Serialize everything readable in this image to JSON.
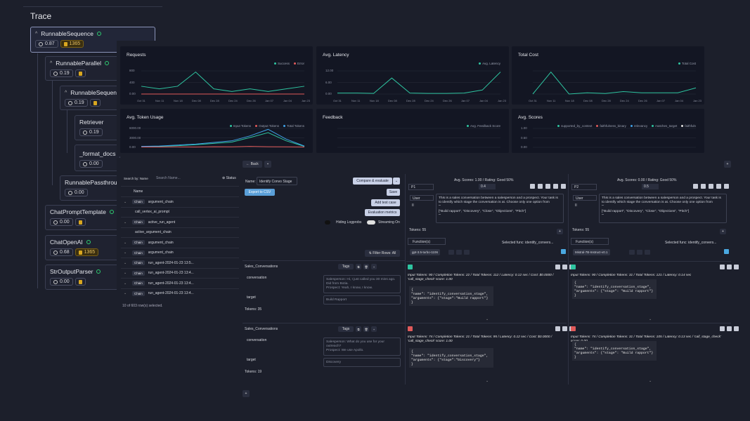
{
  "trace": {
    "title": "Trace",
    "nodes": [
      {
        "name": "RunnableSequence",
        "latency": "0.87",
        "tokens": "1365"
      },
      {
        "name": "RunnableParallel",
        "latency": "0.19"
      },
      {
        "name": "RunnableSequence",
        "latency": "0.19"
      },
      {
        "name": "Retriever",
        "latency": "0.19"
      },
      {
        "name": "_format_docs",
        "latency": "0.00"
      },
      {
        "name": "RunnablePassthrough",
        "latency": "0.00"
      },
      {
        "name": "ChatPromptTemplate",
        "latency": "0.00"
      },
      {
        "name": "ChatOpenAI",
        "latency": "0.68",
        "tokens": "1365"
      },
      {
        "name": "StrOutputParser",
        "latency": "0.00"
      }
    ]
  },
  "dashboard": {
    "cards": [
      {
        "title": "Requests",
        "legend": [
          "Success",
          "Error"
        ],
        "legend_colors": [
          "#2ec4a0",
          "#e05a5a"
        ],
        "yticks": [
          "800",
          "400",
          "0.00"
        ]
      },
      {
        "title": "Avg. Latency",
        "legend": [
          "Avg. Latency"
        ],
        "legend_colors": [
          "#2ec4a0"
        ],
        "yticks": [
          "12.00",
          "6.00",
          "0.00"
        ]
      },
      {
        "title": "Total Cost",
        "legend": [
          "Total Cost"
        ],
        "legend_colors": [
          "#2ec4a0"
        ],
        "yticks": [
          "",
          "",
          ""
        ]
      },
      {
        "title": "Avg. Token Usage",
        "legend": [
          "Input Tokens",
          "Output Tokens",
          "Total Tokens"
        ],
        "legend_colors": [
          "#2ec4a0",
          "#e05a5a",
          "#3fa0e6"
        ],
        "yticks": [
          "6000.00",
          "3000.00",
          "0.00"
        ]
      },
      {
        "title": "Feedback",
        "legend": [
          "Avg. Feedback Score"
        ],
        "legend_colors": [
          "#2ec4a0"
        ],
        "yticks": [
          "",
          "",
          ""
        ]
      },
      {
        "title": "Avg. Scores",
        "legend": [
          "supported_by_context",
          "faithfulness_binary",
          "relevancy",
          "matches_target",
          "faithfuln"
        ],
        "legend_colors": [
          "#2ec4a0",
          "#e05a5a",
          "#3fa0e6",
          "#2ec4a0",
          "#e0e0e0"
        ],
        "yticks": [
          "1.00",
          "0.50",
          "0.00"
        ]
      }
    ],
    "xticks": [
      "Oct 31",
      "Nov 11",
      "Nov 18",
      "Dec 08",
      "Dec 28",
      "Dec 24",
      "Dec 26",
      "Jan 07",
      "Jan 04",
      "Jan 23"
    ]
  },
  "chart_data": [
    {
      "type": "line",
      "title": "Requests",
      "series": [
        {
          "name": "Success",
          "values": [
            60,
            40,
            60,
            170,
            40,
            20,
            40,
            20,
            40,
            60
          ]
        },
        {
          "name": "Error",
          "values": [
            0,
            0,
            0,
            0,
            0,
            0,
            0,
            0,
            0,
            0
          ]
        }
      ]
    },
    {
      "type": "line",
      "title": "Avg. Latency",
      "series": [
        {
          "name": "Avg. Latency",
          "values": [
            0.5,
            0.5,
            0.3,
            8,
            0.5,
            0.3,
            0.3,
            0.5,
            2,
            11
          ]
        }
      ]
    },
    {
      "type": "line",
      "title": "Total Cost",
      "series": [
        {
          "name": "Total Cost",
          "values": [
            0,
            0.9,
            0,
            0.05,
            0.02,
            0.1,
            0.05,
            0.05,
            0.05,
            0.25
          ]
        }
      ]
    },
    {
      "type": "line",
      "title": "Avg. Token Usage",
      "series": [
        {
          "name": "Input Tokens",
          "values": [
            200,
            300,
            500,
            800,
            1200,
            1600,
            3000,
            4500,
            2000,
            300
          ]
        },
        {
          "name": "Output Tokens",
          "values": [
            100,
            100,
            150,
            100,
            200,
            150,
            300,
            200,
            150,
            100
          ]
        },
        {
          "name": "Total Tokens",
          "values": [
            300,
            400,
            700,
            1000,
            1500,
            2000,
            3500,
            5500,
            2500,
            400
          ]
        }
      ]
    }
  ],
  "toolbar": {
    "back_label": "Back"
  },
  "left_table": {
    "search_by": "Search by: Name",
    "search_placeholder": "Search Name...",
    "status": "Status",
    "col_name": "Name",
    "rows": [
      {
        "chain": "Chain",
        "name": "argument_chain"
      },
      {
        "chain": "",
        "name": "call_vertex_ai_prompt"
      },
      {
        "chain": "Chain",
        "name": "active_run_agent"
      },
      {
        "chain": "",
        "name": "active_argument_chain"
      },
      {
        "chain": "Chain",
        "name": "argument_chain"
      },
      {
        "chain": "Chain",
        "name": "argument_chain"
      },
      {
        "chain": "Chain",
        "name": "run_agent-2024-01-23 13:5..."
      },
      {
        "chain": "Chain",
        "name": "run_agent-2024-01-23 13:4..."
      },
      {
        "chain": "Chain",
        "name": "run_agent-2024-01-23 13:4..."
      },
      {
        "chain": "Chain",
        "name": "run_agent-2024-01-23 13:4..."
      }
    ],
    "footer": "10 of 603 row(s) selected."
  },
  "eval": {
    "name_label": "Name:",
    "name_value": "Identify Convo Stage",
    "export": "Export to CSV",
    "compare": "Compare & evaluate",
    "save": "Save",
    "add_test": "Add test case",
    "eval_metrics": "Evaluation metrics",
    "hiding_logprobs": "Hiding Logprobs",
    "streaming": "Streaming On",
    "filter": "Filter Rows: All",
    "dataset_label": "Sales_Conversations",
    "tags": "Tags",
    "conversation": "conversation",
    "target": "target",
    "rows": [
      {
        "conversation": "Salesperson: Hi, I just called you 30 mins ago. Did from Botia.\nProspect: Yeah, I know, I know.",
        "target": "Build Rapport",
        "tokens": "Tokens: 35"
      },
      {
        "conversation": "Salesperson: What do you use for your outreach?\nProspect: We use Apollo.",
        "target": "Discovery",
        "tokens": "Tokens: 19"
      }
    ]
  },
  "prompts": [
    {
      "scores": "Avg. Scores:  1.00  /  Rating: Good 50%",
      "id": "P1",
      "temp": "0.4",
      "role": "User",
      "text": "This is a sales conversation between a salesperson and a prospect. Your task is to identify which stage the conversation is at. Choose only one option from\n'''\n[\"Build rapport\", \"Discovery\", \"Close\", \"Objections\", \"Pitch\"]\n'''",
      "tokens": "Tokens: 55",
      "functions": "Function(s)",
      "selected": "Selected func:  identify_convers...",
      "model": "gpt-3.5-turbo-1106",
      "results": [
        {
          "meta": "Input Tokens: 90 / Completion Tokens: 22 / Total Tokens: 112 / Latency: 0.12 sec / Cost: $0.0000 / 'call_stage_check' score: 1.00",
          "code": "{\n\"name\": \"identify_conversation_stage\",\n\"arguments\": {\"stage\":\"Build rapport\"}\n}"
        },
        {
          "meta": "Input Tokens: 74 / Completion Tokens: 21 / Total Tokens: 95 / Latency: 0.12 sec / Cost: $0.0000 / 'call_stage_check' score: 1.00",
          "code": "{\n\"name\": \"identify_conversation_stage\",\n\"arguments\": {\"stage\":\"Discovery\"}\n}"
        }
      ]
    },
    {
      "scores": "Avg. Scores:  0.00  /  Rating: Good 50%",
      "id": "P2",
      "temp": "0.5",
      "role": "User",
      "text": "This is a sales conversation between a salesperson and a prospect. Your task is to identify which stage the conversation is at. Choose only one option from\n'''\n[\"Build rapport\", \"Discovery\", \"Close\", \"Objections\", \"Pitch\"]\n'''",
      "tokens": "Tokens: 55",
      "functions": "Function(s)",
      "selected": "Selected func:  identify_convers...",
      "model": "Mistral-7B-Instruct-v0.1",
      "results": [
        {
          "meta": "Input Tokens: 90 / Completion Tokens: 31 / Total Tokens: 121 / Latency: 0.14 sec",
          "code": "{\n\"name\": \"identify_conversation_stage\",\n\"arguments\": {\"stage\": \"Build rapport\"}\n}"
        },
        {
          "meta": "Input Tokens: 74 / Completion Tokens: 31 / Total Tokens: 105 / Latency: 0.13 sec / 'call_stage_check' score: 0.00",
          "code": "{\n\"name\": \"identify_conversation_stage\",\n\"arguments\": {\"stage\": \"Build rapport\"}\n}"
        }
      ]
    }
  ],
  "colors": {
    "bg": "#1c1f2b",
    "card": "#131623",
    "accent": "#2ec4a0",
    "error": "#e05a5a",
    "blue": "#3fa0e6",
    "token": "#d9a720"
  }
}
